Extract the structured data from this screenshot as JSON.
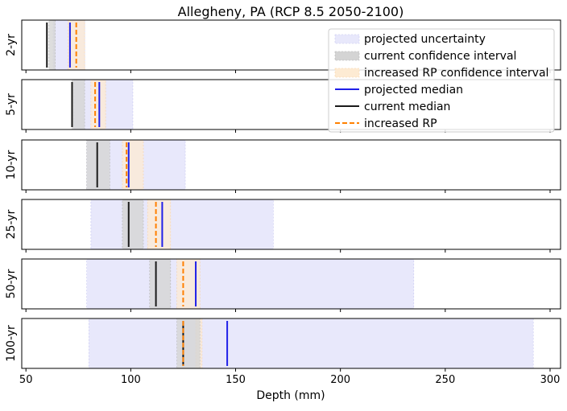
{
  "chart_data": {
    "type": "interval-comparison",
    "title": "Allegheny, PA (RCP 8.5 2050-2100)",
    "xlabel": "Depth (mm)",
    "xlim": [
      48,
      305
    ],
    "xticks": [
      50,
      100,
      150,
      200,
      250,
      300
    ],
    "legend_placement": "top-right",
    "legend": [
      {
        "key": "proj_unc",
        "label": "projected uncertainty"
      },
      {
        "key": "cur_ci",
        "label": "current confidence interval"
      },
      {
        "key": "inc_ci",
        "label": "increased RP confidence interval"
      },
      {
        "key": "proj_med",
        "label": "projected median"
      },
      {
        "key": "cur_med",
        "label": "current median"
      },
      {
        "key": "inc_rp",
        "label": "increased RP"
      }
    ],
    "colors": {
      "proj_unc": "#e8e8fb",
      "cur_ci": "#d4d4d4",
      "inc_ci": "#fdebd3",
      "proj_med": "#1f1fe8",
      "cur_med": "#1a1a1a",
      "inc_rp": "#ff8000"
    },
    "series": [
      {
        "label": "2-yr",
        "proj_unc": [
          63,
          78
        ],
        "cur_ci": [
          61,
          64
        ],
        "inc_ci": [
          70,
          78
        ],
        "proj_med": 71,
        "cur_med": 60,
        "inc_rp": 74
      },
      {
        "label": "5-yr",
        "proj_unc": [
          73,
          101
        ],
        "cur_ci": [
          72,
          78
        ],
        "inc_ci": [
          81,
          88
        ],
        "proj_med": 85,
        "cur_med": 72,
        "inc_rp": 83
      },
      {
        "label": "10-yr",
        "proj_unc": [
          79,
          126
        ],
        "cur_ci": [
          79,
          90
        ],
        "inc_ci": [
          96,
          106
        ],
        "proj_med": 99,
        "cur_med": 84,
        "inc_rp": 98
      },
      {
        "label": "25-yr",
        "proj_unc": [
          81,
          168
        ],
        "cur_ci": [
          96,
          106
        ],
        "inc_ci": [
          108,
          119
        ],
        "proj_med": 115,
        "cur_med": 99,
        "inc_rp": 112
      },
      {
        "label": "50-yr",
        "proj_unc": [
          79,
          235
        ],
        "cur_ci": [
          109,
          119
        ],
        "inc_ci": [
          122,
          133
        ],
        "proj_med": 131,
        "cur_med": 112,
        "inc_rp": 125
      },
      {
        "label": "100-yr",
        "proj_unc": [
          80,
          292
        ],
        "cur_ci": [
          122,
          133
        ],
        "inc_ci": [
          131,
          134
        ],
        "proj_med": 146,
        "cur_med": 125,
        "inc_rp": 125
      }
    ]
  }
}
